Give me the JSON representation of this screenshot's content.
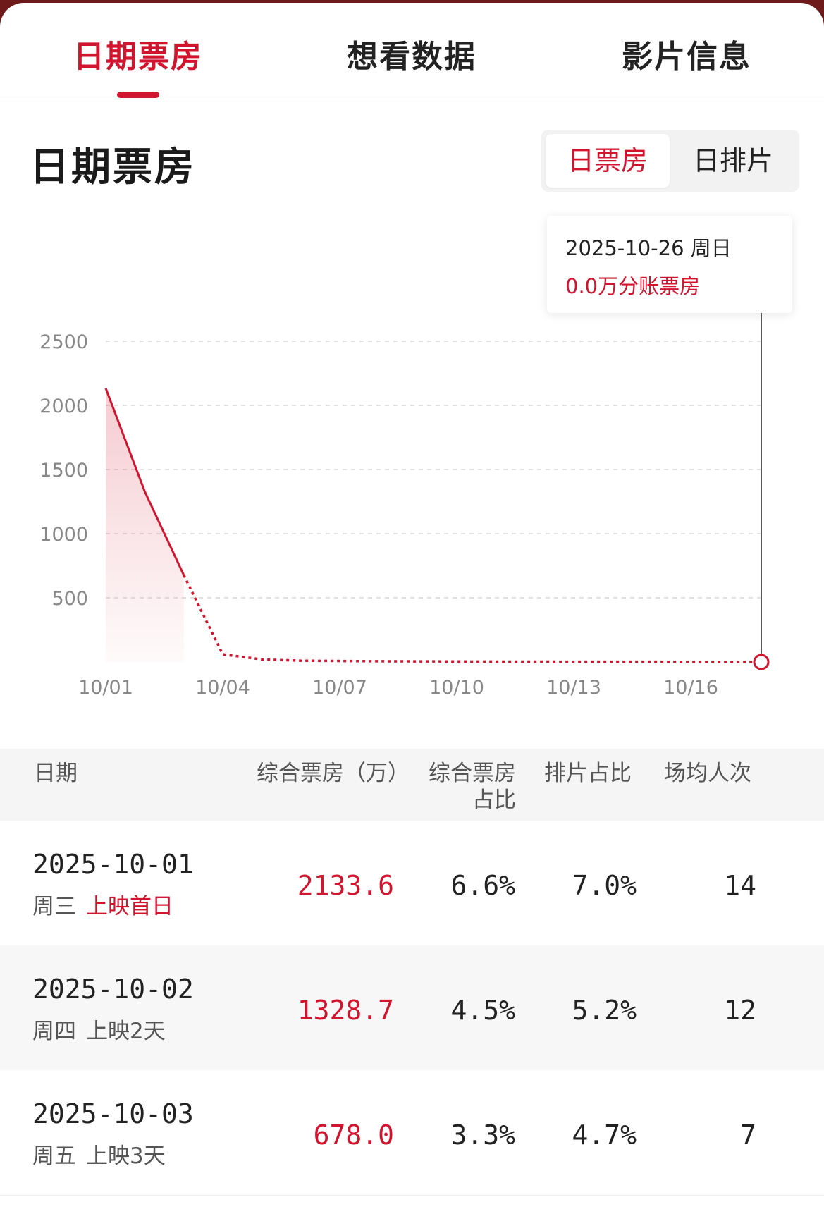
{
  "tabs": [
    {
      "label": "日期票房",
      "active": true
    },
    {
      "label": "想看数据",
      "active": false
    },
    {
      "label": "影片信息",
      "active": false
    }
  ],
  "section_title": "日期票房",
  "toggle": {
    "options": [
      "日票房",
      "日排片"
    ],
    "selected": "日票房"
  },
  "tooltip": {
    "date": "2025-10-26 周日",
    "value": "0.0万分账票房"
  },
  "colors": {
    "accent": "#d2152f",
    "text": "#222222",
    "muted": "#888888",
    "header_bg": "#f5f5f5"
  },
  "chart_data": {
    "type": "line",
    "x": [
      "10/01",
      "10/02",
      "10/03",
      "10/04",
      "10/05",
      "10/06",
      "10/07",
      "10/08",
      "10/09",
      "10/10",
      "10/11",
      "10/12",
      "10/13",
      "10/14",
      "10/15",
      "10/16",
      "10/17",
      "10/18",
      "10/26"
    ],
    "x_ticks": [
      "10/01",
      "10/04",
      "10/07",
      "10/10",
      "10/13",
      "10/16"
    ],
    "y_ticks": [
      "500",
      "1000",
      "1500",
      "2000",
      "2500"
    ],
    "ylim": [
      0,
      2500
    ],
    "series": [
      {
        "values": [
          2133.6,
          1328.7,
          678.0,
          60,
          20,
          10,
          8,
          6,
          5,
          4,
          3,
          3,
          2,
          2,
          2,
          1,
          1,
          1,
          0.0
        ],
        "solid_until_index": 2
      }
    ],
    "grid": true,
    "highlight_point": {
      "x": "10/26",
      "y": 0.0
    }
  },
  "table": {
    "headers": [
      "日期",
      "综合票房（万）",
      "综合票房\n占比",
      "排片占比",
      "场均人次"
    ],
    "rows": [
      {
        "date": "2025-10-01",
        "weekday": "周三",
        "run": "上映首日",
        "box": "2133.6",
        "share": "6.6%",
        "sched": "7.0%",
        "avg": "14"
      },
      {
        "date": "2025-10-02",
        "weekday": "周四",
        "run": "上映2天",
        "box": "1328.7",
        "share": "4.5%",
        "sched": "5.2%",
        "avg": "12"
      },
      {
        "date": "2025-10-03",
        "weekday": "周五",
        "run": "上映3天",
        "box": "678.0",
        "share": "3.3%",
        "sched": "4.7%",
        "avg": "7"
      }
    ]
  }
}
